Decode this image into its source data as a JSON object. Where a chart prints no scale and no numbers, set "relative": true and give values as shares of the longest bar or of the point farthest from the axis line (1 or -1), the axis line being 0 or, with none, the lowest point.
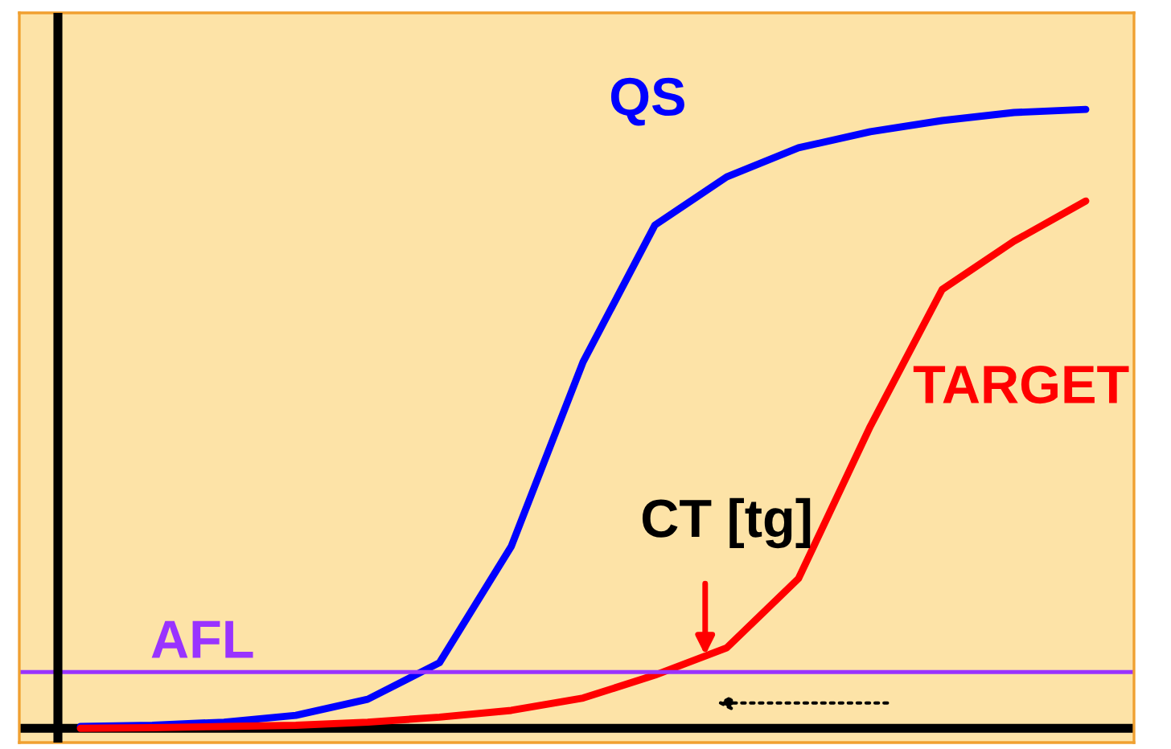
{
  "chart_data": {
    "type": "line",
    "relative": true,
    "marker": "none",
    "line_style": "solid",
    "categories": [
      null,
      null,
      null,
      null,
      null,
      null,
      null,
      null,
      null,
      null,
      null,
      null,
      null,
      null,
      null
    ],
    "series": [
      {
        "name": "QS",
        "color": "#0000ff",
        "values": [
          0.003,
          0.005,
          0.01,
          0.021,
          0.047,
          0.106,
          0.294,
          0.592,
          0.813,
          0.891,
          0.938,
          0.964,
          0.982,
          0.995,
          1.0
        ]
      },
      {
        "name": "TARGET",
        "color": "#ff0000",
        "values": [
          0.0,
          0.001,
          0.003,
          0.005,
          0.01,
          0.018,
          0.029,
          0.049,
          0.086,
          0.13,
          0.242,
          0.488,
          0.709,
          0.787,
          0.852
        ]
      }
    ],
    "ref_lines": [
      {
        "axis": "y",
        "value": 0.091,
        "label": "AFL",
        "color": "#9933ff",
        "line_style": "solid"
      }
    ],
    "annotations": [
      "CT [tg]"
    ]
  }
}
